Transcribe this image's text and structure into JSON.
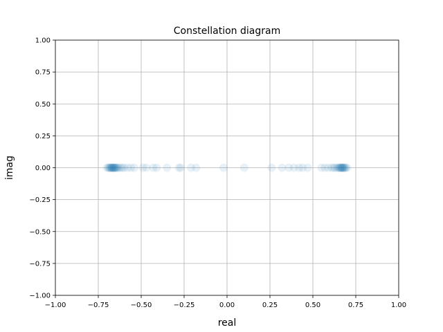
{
  "chart_data": {
    "type": "scatter",
    "title": "Constellation diagram",
    "xlabel": "real",
    "ylabel": "imag",
    "xlim": [
      -1.0,
      1.0
    ],
    "ylim": [
      -1.0,
      1.0
    ],
    "x_ticks": [
      "−1.00",
      "−0.75",
      "−0.50",
      "−0.25",
      "0.00",
      "0.25",
      "0.50",
      "0.75",
      "1.00"
    ],
    "y_ticks": [
      "1.00",
      "0.75",
      "0.50",
      "0.25",
      "0.00",
      "−0.25",
      "−0.50",
      "−0.75",
      "−1.00"
    ],
    "grid": true,
    "marker_color": "#1f77b4",
    "marker_alpha": 0.1,
    "series": [
      {
        "points": [
          {
            "x": -0.7,
            "y": 0.0
          },
          {
            "x": -0.69,
            "y": 0.0
          },
          {
            "x": -0.69,
            "y": 0.0
          },
          {
            "x": -0.68,
            "y": 0.0
          },
          {
            "x": -0.68,
            "y": 0.0
          },
          {
            "x": -0.68,
            "y": 0.0
          },
          {
            "x": -0.67,
            "y": 0.0
          },
          {
            "x": -0.67,
            "y": 0.0
          },
          {
            "x": -0.67,
            "y": 0.0
          },
          {
            "x": -0.67,
            "y": 0.0
          },
          {
            "x": -0.66,
            "y": 0.0
          },
          {
            "x": -0.66,
            "y": 0.0
          },
          {
            "x": -0.66,
            "y": 0.0
          },
          {
            "x": -0.66,
            "y": 0.0
          },
          {
            "x": -0.65,
            "y": 0.0
          },
          {
            "x": -0.65,
            "y": 0.0
          },
          {
            "x": -0.65,
            "y": 0.0
          },
          {
            "x": -0.64,
            "y": 0.0
          },
          {
            "x": -0.64,
            "y": 0.0
          },
          {
            "x": -0.63,
            "y": 0.0
          },
          {
            "x": -0.62,
            "y": 0.0
          },
          {
            "x": -0.61,
            "y": 0.0
          },
          {
            "x": -0.6,
            "y": 0.0
          },
          {
            "x": -0.58,
            "y": 0.0
          },
          {
            "x": -0.56,
            "y": 0.0
          },
          {
            "x": -0.54,
            "y": 0.0
          },
          {
            "x": -0.49,
            "y": 0.0
          },
          {
            "x": -0.47,
            "y": 0.0
          },
          {
            "x": -0.43,
            "y": 0.0
          },
          {
            "x": -0.41,
            "y": 0.0
          },
          {
            "x": -0.35,
            "y": 0.0
          },
          {
            "x": -0.28,
            "y": 0.0
          },
          {
            "x": -0.27,
            "y": 0.0
          },
          {
            "x": -0.21,
            "y": 0.0
          },
          {
            "x": -0.18,
            "y": 0.0
          },
          {
            "x": -0.02,
            "y": 0.0
          },
          {
            "x": 0.1,
            "y": 0.0
          },
          {
            "x": 0.26,
            "y": 0.0
          },
          {
            "x": 0.32,
            "y": 0.0
          },
          {
            "x": 0.36,
            "y": 0.0
          },
          {
            "x": 0.39,
            "y": 0.0
          },
          {
            "x": 0.42,
            "y": 0.0
          },
          {
            "x": 0.44,
            "y": 0.0
          },
          {
            "x": 0.47,
            "y": 0.0
          },
          {
            "x": 0.55,
            "y": 0.0
          },
          {
            "x": 0.57,
            "y": 0.0
          },
          {
            "x": 0.59,
            "y": 0.0
          },
          {
            "x": 0.61,
            "y": 0.0
          },
          {
            "x": 0.62,
            "y": 0.0
          },
          {
            "x": 0.63,
            "y": 0.0
          },
          {
            "x": 0.64,
            "y": 0.0
          },
          {
            "x": 0.65,
            "y": 0.0
          },
          {
            "x": 0.65,
            "y": 0.0
          },
          {
            "x": 0.66,
            "y": 0.0
          },
          {
            "x": 0.66,
            "y": 0.0
          },
          {
            "x": 0.66,
            "y": 0.0
          },
          {
            "x": 0.67,
            "y": 0.0
          },
          {
            "x": 0.67,
            "y": 0.0
          },
          {
            "x": 0.67,
            "y": 0.0
          },
          {
            "x": 0.67,
            "y": 0.0
          },
          {
            "x": 0.68,
            "y": 0.0
          },
          {
            "x": 0.68,
            "y": 0.0
          },
          {
            "x": 0.68,
            "y": 0.0
          },
          {
            "x": 0.69,
            "y": 0.0
          },
          {
            "x": 0.69,
            "y": 0.0
          },
          {
            "x": 0.7,
            "y": 0.0
          }
        ]
      }
    ]
  }
}
